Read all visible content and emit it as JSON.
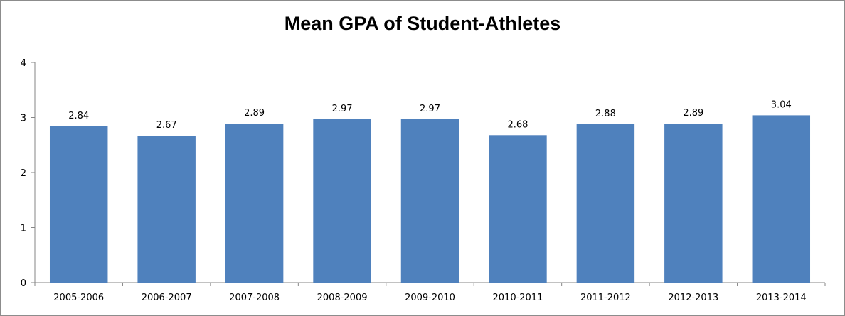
{
  "chart_data": {
    "type": "bar",
    "title": "Mean GPA of Student-Athletes",
    "categories": [
      "2005-2006",
      "2006-2007",
      "2007-2008",
      "2008-2009",
      "2009-2010",
      "2010-2011",
      "2011-2012",
      "2012-2013",
      "2013-2014"
    ],
    "values": [
      2.84,
      2.67,
      2.89,
      2.97,
      2.97,
      2.68,
      2.88,
      2.89,
      3.04
    ],
    "data_labels": [
      "2.84",
      "2.67",
      "2.89",
      "2.97",
      "2.97",
      "2.68",
      "2.88",
      "2.89",
      "3.04"
    ],
    "y_ticks": [
      "0",
      "1",
      "2",
      "3",
      "4"
    ],
    "ylim": [
      0,
      4
    ],
    "grid": false,
    "legend": "none",
    "bar_color": "#4f81bd",
    "xlabel": "",
    "ylabel": ""
  }
}
